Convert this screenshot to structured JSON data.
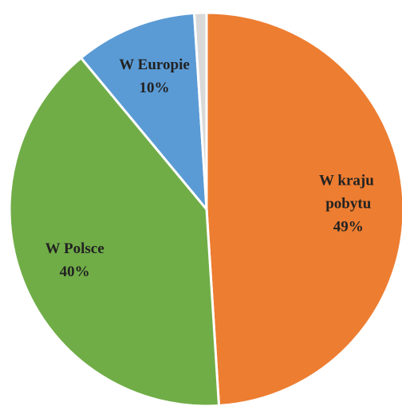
{
  "chart_data": {
    "type": "pie",
    "categories": [
      "W kraju pobytu",
      "W Polsce",
      "W Europie",
      null
    ],
    "values": [
      49,
      40,
      10,
      1
    ],
    "value_labels": [
      "49%",
      "40%",
      "10%",
      null
    ],
    "colors": [
      "#ed7d31",
      "#70ad47",
      "#5b9bd5",
      "#d9d9d9"
    ]
  }
}
